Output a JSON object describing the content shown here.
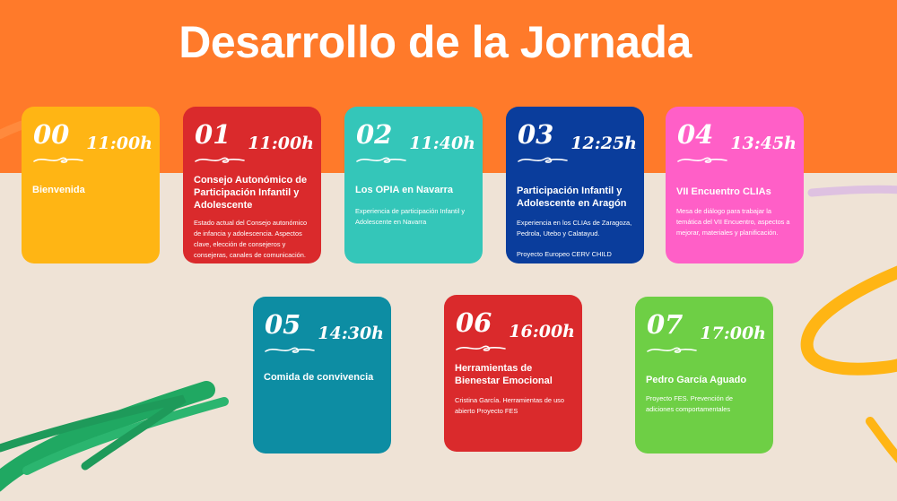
{
  "title": "Desarrollo de la Jornada",
  "colors": {
    "header": "#ff7a2a",
    "background": "#efe3d6"
  },
  "cards": [
    {
      "num": "00",
      "time": "11:00h",
      "title": "Bienvenida",
      "desc": "",
      "color": "#ffb514"
    },
    {
      "num": "01",
      "time": "11:00h",
      "title": "Consejo Autonómico de Participación Infantil y Adolescente",
      "desc": " Estado actual del Consejo autonómico de infancia y adolescencia. Aspectos clave, elección de consejeros y consejeras, canales de comunicación.",
      "color": "#da2a2c"
    },
    {
      "num": "02",
      "time": "11:40h",
      "title": "Los OPIA en Navarra",
      "desc": "Experiencia de participación Infantil y Adolescente en Navarra",
      "color": "#34c6b9"
    },
    {
      "num": "03",
      "time": "12:25h",
      "title": "Participación Infantil y Adolescente en Aragón",
      "desc": "Experiencia en los CLIAs de Zaragoza, Pedrola, Utebo y Calatayud.",
      "extra": "Proyecto Europeo CERV CHILD",
      "color": "#0a3d9c"
    },
    {
      "num": "04",
      "time": "13:45h",
      "title": "VII Encuentro CLIAs",
      "desc": "Mesa de diálogo para trabajar la temática del VII Encuentro, aspectos a mejorar, materiales y planificación.",
      "color": "#ff5fc7"
    },
    {
      "num": "05",
      "time": "14:30h",
      "title": "Comida de convivencia",
      "desc": "",
      "color": "#0d8da3"
    },
    {
      "num": "06",
      "time": "16:00h",
      "title": "Herramientas de Bienestar Emocional",
      "desc": "Cristina García. Herramientas de uso abierto Proyecto FES",
      "color": "#da2a2c"
    },
    {
      "num": "07",
      "time": "17:00h",
      "title": "Pedro García Aguado",
      "desc": "Proyecto FES. Prevención de adiciones comportamentales",
      "color": "#6ecf45"
    }
  ]
}
